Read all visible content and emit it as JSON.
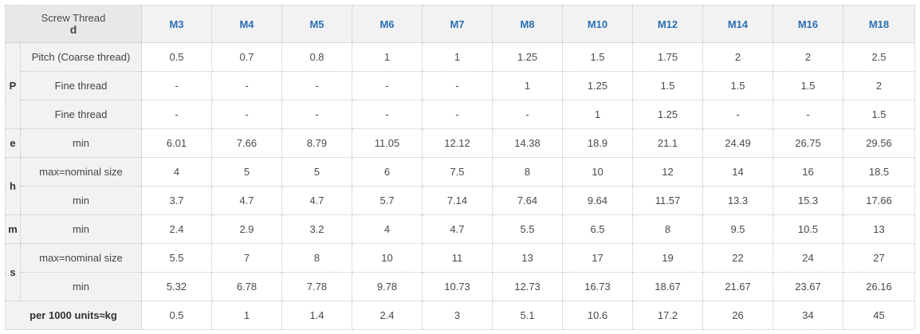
{
  "header": {
    "title_line1": "Screw Thread",
    "title_line2": "d",
    "sizes": [
      "M3",
      "M4",
      "M5",
      "M6",
      "M7",
      "M8",
      "M10",
      "M12",
      "M14",
      "M16",
      "M18"
    ]
  },
  "groups": {
    "P": "P",
    "e": "e",
    "h": "h",
    "m": "m",
    "s": "s"
  },
  "rows": [
    {
      "label": "Pitch (Coarse thread)",
      "values": [
        "0.5",
        "0.7",
        "0.8",
        "1",
        "1",
        "1.25",
        "1.5",
        "1.75",
        "2",
        "2",
        "2.5"
      ]
    },
    {
      "label": "Fine thread",
      "values": [
        "-",
        "-",
        "-",
        "-",
        "-",
        "1",
        "1.25",
        "1.5",
        "1.5",
        "1.5",
        "2"
      ]
    },
    {
      "label": "Fine thread",
      "values": [
        "-",
        "-",
        "-",
        "-",
        "-",
        "-",
        "1",
        "1.25",
        "-",
        "-",
        "1.5"
      ]
    },
    {
      "label": "min",
      "values": [
        "6.01",
        "7.66",
        "8.79",
        "11.05",
        "12.12",
        "14.38",
        "18.9",
        "21.1",
        "24.49",
        "26.75",
        "29.56"
      ]
    },
    {
      "label": "max=nominal size",
      "values": [
        "4",
        "5",
        "5",
        "6",
        "7.5",
        "8",
        "10",
        "12",
        "14",
        "16",
        "18.5"
      ]
    },
    {
      "label": "min",
      "values": [
        "3.7",
        "4.7",
        "4.7",
        "5.7",
        "7.14",
        "7.64",
        "9.64",
        "11.57",
        "13.3",
        "15.3",
        "17.66"
      ]
    },
    {
      "label": "min",
      "values": [
        "2.4",
        "2.9",
        "3.2",
        "4",
        "4.7",
        "5.5",
        "6.5",
        "8",
        "9.5",
        "10.5",
        "13"
      ]
    },
    {
      "label": "max=nominal size",
      "values": [
        "5.5",
        "7",
        "8",
        "10",
        "11",
        "13",
        "17",
        "19",
        "22",
        "24",
        "27"
      ]
    },
    {
      "label": "min",
      "values": [
        "5.32",
        "6.78",
        "7.78",
        "9.78",
        "10.73",
        "12.73",
        "16.73",
        "18.67",
        "21.67",
        "23.67",
        "26.16"
      ]
    }
  ],
  "weight": {
    "label": "per 1000 units≈kg",
    "values": [
      "0.5",
      "1",
      "1.4",
      "2.4",
      "3",
      "5.1",
      "10.6",
      "17.2",
      "26",
      "34",
      "45"
    ]
  }
}
